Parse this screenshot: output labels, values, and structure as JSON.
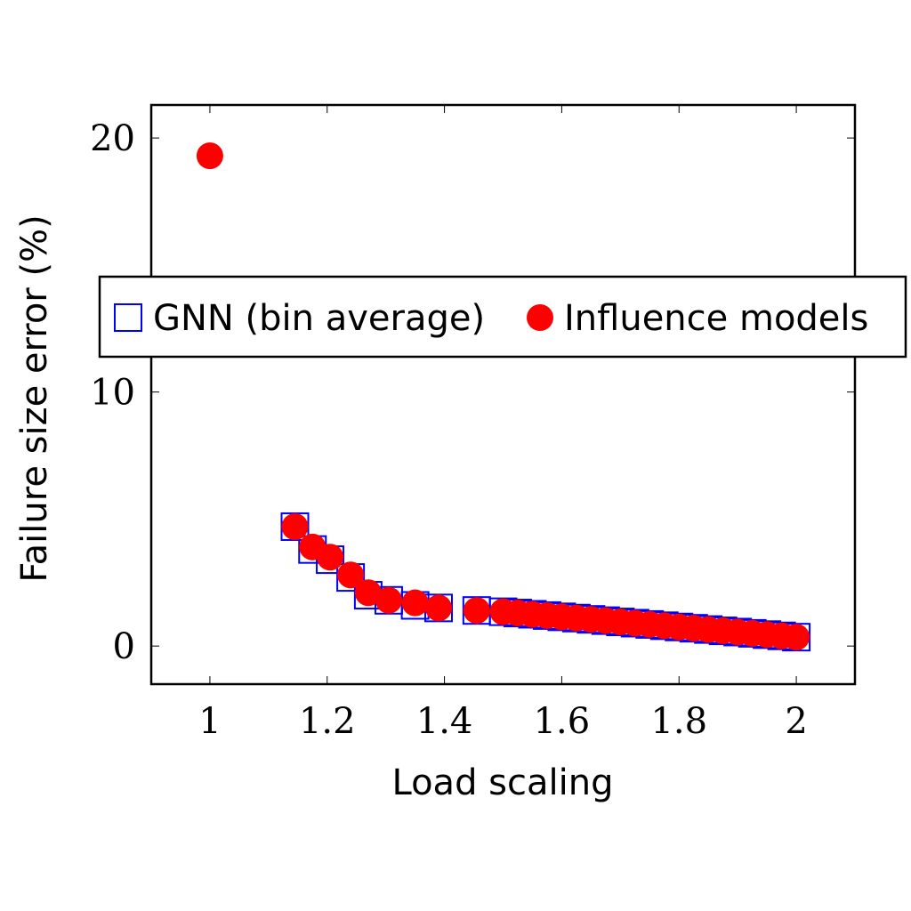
{
  "chart_data": {
    "type": "scatter",
    "xlabel": "Load scaling",
    "ylabel": "Failure size error (%)",
    "xlim": [
      0.9,
      2.1
    ],
    "ylim": [
      -1.5,
      21.3
    ],
    "xticks": [
      1,
      1.2,
      1.4,
      1.6,
      1.8,
      2
    ],
    "xtick_labels": [
      "1",
      "1.2",
      "1.4",
      "1.6",
      "1.8",
      "2"
    ],
    "yticks": [
      0,
      10,
      20
    ],
    "ytick_labels": [
      "0",
      "10",
      "20"
    ],
    "grid": false,
    "legend_position": "center",
    "series": [
      {
        "name": "GNN (bin average)",
        "marker": "open-square",
        "color": "#0000ff",
        "x": [
          1.145,
          1.175,
          1.205,
          1.24,
          1.27,
          1.305,
          1.35,
          1.39,
          1.455,
          1.5,
          1.525,
          1.55,
          1.575,
          1.6,
          1.625,
          1.65,
          1.675,
          1.7,
          1.725,
          1.75,
          1.775,
          1.8,
          1.825,
          1.85,
          1.875,
          1.9,
          1.925,
          1.95,
          1.975,
          2.0
        ],
        "y": [
          4.7,
          3.8,
          3.4,
          2.7,
          2.0,
          1.8,
          1.6,
          1.5,
          1.4,
          1.35,
          1.3,
          1.25,
          1.2,
          1.15,
          1.1,
          1.05,
          1.0,
          0.95,
          0.9,
          0.85,
          0.8,
          0.75,
          0.7,
          0.65,
          0.6,
          0.55,
          0.5,
          0.45,
          0.4,
          0.35
        ]
      },
      {
        "name": "Influence models",
        "marker": "filled-circle",
        "color": "#ff0000",
        "x": [
          1.0,
          1.145,
          1.175,
          1.205,
          1.24,
          1.27,
          1.305,
          1.35,
          1.39,
          1.455,
          1.5,
          1.525,
          1.55,
          1.575,
          1.6,
          1.625,
          1.65,
          1.675,
          1.7,
          1.725,
          1.75,
          1.775,
          1.8,
          1.825,
          1.85,
          1.875,
          1.9,
          1.925,
          1.95,
          1.975,
          2.0
        ],
        "y": [
          19.3,
          4.7,
          3.9,
          3.5,
          2.8,
          2.1,
          1.8,
          1.7,
          1.5,
          1.4,
          1.35,
          1.3,
          1.25,
          1.2,
          1.15,
          1.1,
          1.05,
          1.0,
          0.95,
          0.9,
          0.85,
          0.8,
          0.75,
          0.7,
          0.65,
          0.6,
          0.55,
          0.5,
          0.45,
          0.4,
          0.35
        ]
      }
    ]
  }
}
